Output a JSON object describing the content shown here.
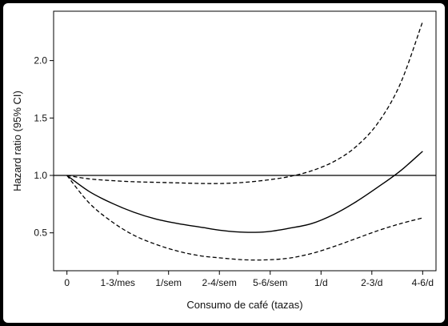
{
  "chart_data": {
    "type": "line",
    "title": "",
    "xlabel": "Consumo de café (tazas)",
    "ylabel": "Hazard ratio (95% CI)",
    "categories": [
      "0",
      "1-3/mes",
      "1/sem",
      "2-4/sem",
      "5-6/sem",
      "1/d",
      "2-3/d",
      "4-6/d"
    ],
    "yticks": [
      0.5,
      1.0,
      1.5,
      2.0
    ],
    "ytick_labels": [
      "0.5",
      "1.0",
      "1.5",
      "2.0"
    ],
    "xlim": [
      -0.3,
      8.3
    ],
    "ylim": [
      0.17,
      2.43
    ],
    "reference_line": 1.0,
    "grid": false,
    "series": [
      {
        "role": "estimate",
        "style": "solid",
        "x": [
          0,
          0.5,
          1,
          1.5,
          2,
          2.5,
          3,
          3.5,
          4,
          4.5,
          5,
          5.5,
          6,
          6.5,
          7,
          7.5,
          8
        ],
        "y": [
          1.0,
          0.86,
          0.76,
          0.68,
          0.62,
          0.58,
          0.55,
          0.52,
          0.505,
          0.51,
          0.54,
          0.58,
          0.66,
          0.77,
          0.9,
          1.04,
          1.21
        ]
      },
      {
        "role": "upper-ci",
        "style": "dashed",
        "x": [
          0,
          0.5,
          1,
          1.5,
          2,
          2.5,
          3,
          3.5,
          4,
          4.5,
          5,
          5.5,
          6,
          6.5,
          7,
          7.5,
          8
        ],
        "y": [
          1.0,
          0.97,
          0.955,
          0.945,
          0.94,
          0.935,
          0.93,
          0.93,
          0.94,
          0.96,
          0.99,
          1.04,
          1.12,
          1.25,
          1.46,
          1.8,
          2.34
        ]
      },
      {
        "role": "lower-ci",
        "style": "dashed",
        "x": [
          0,
          0.5,
          1,
          1.5,
          2,
          2.5,
          3,
          3.5,
          4,
          4.5,
          5,
          5.5,
          6,
          6.5,
          7,
          7.5,
          8
        ],
        "y": [
          1.0,
          0.76,
          0.6,
          0.48,
          0.4,
          0.34,
          0.3,
          0.28,
          0.265,
          0.265,
          0.28,
          0.32,
          0.38,
          0.45,
          0.52,
          0.58,
          0.63
        ]
      }
    ]
  }
}
